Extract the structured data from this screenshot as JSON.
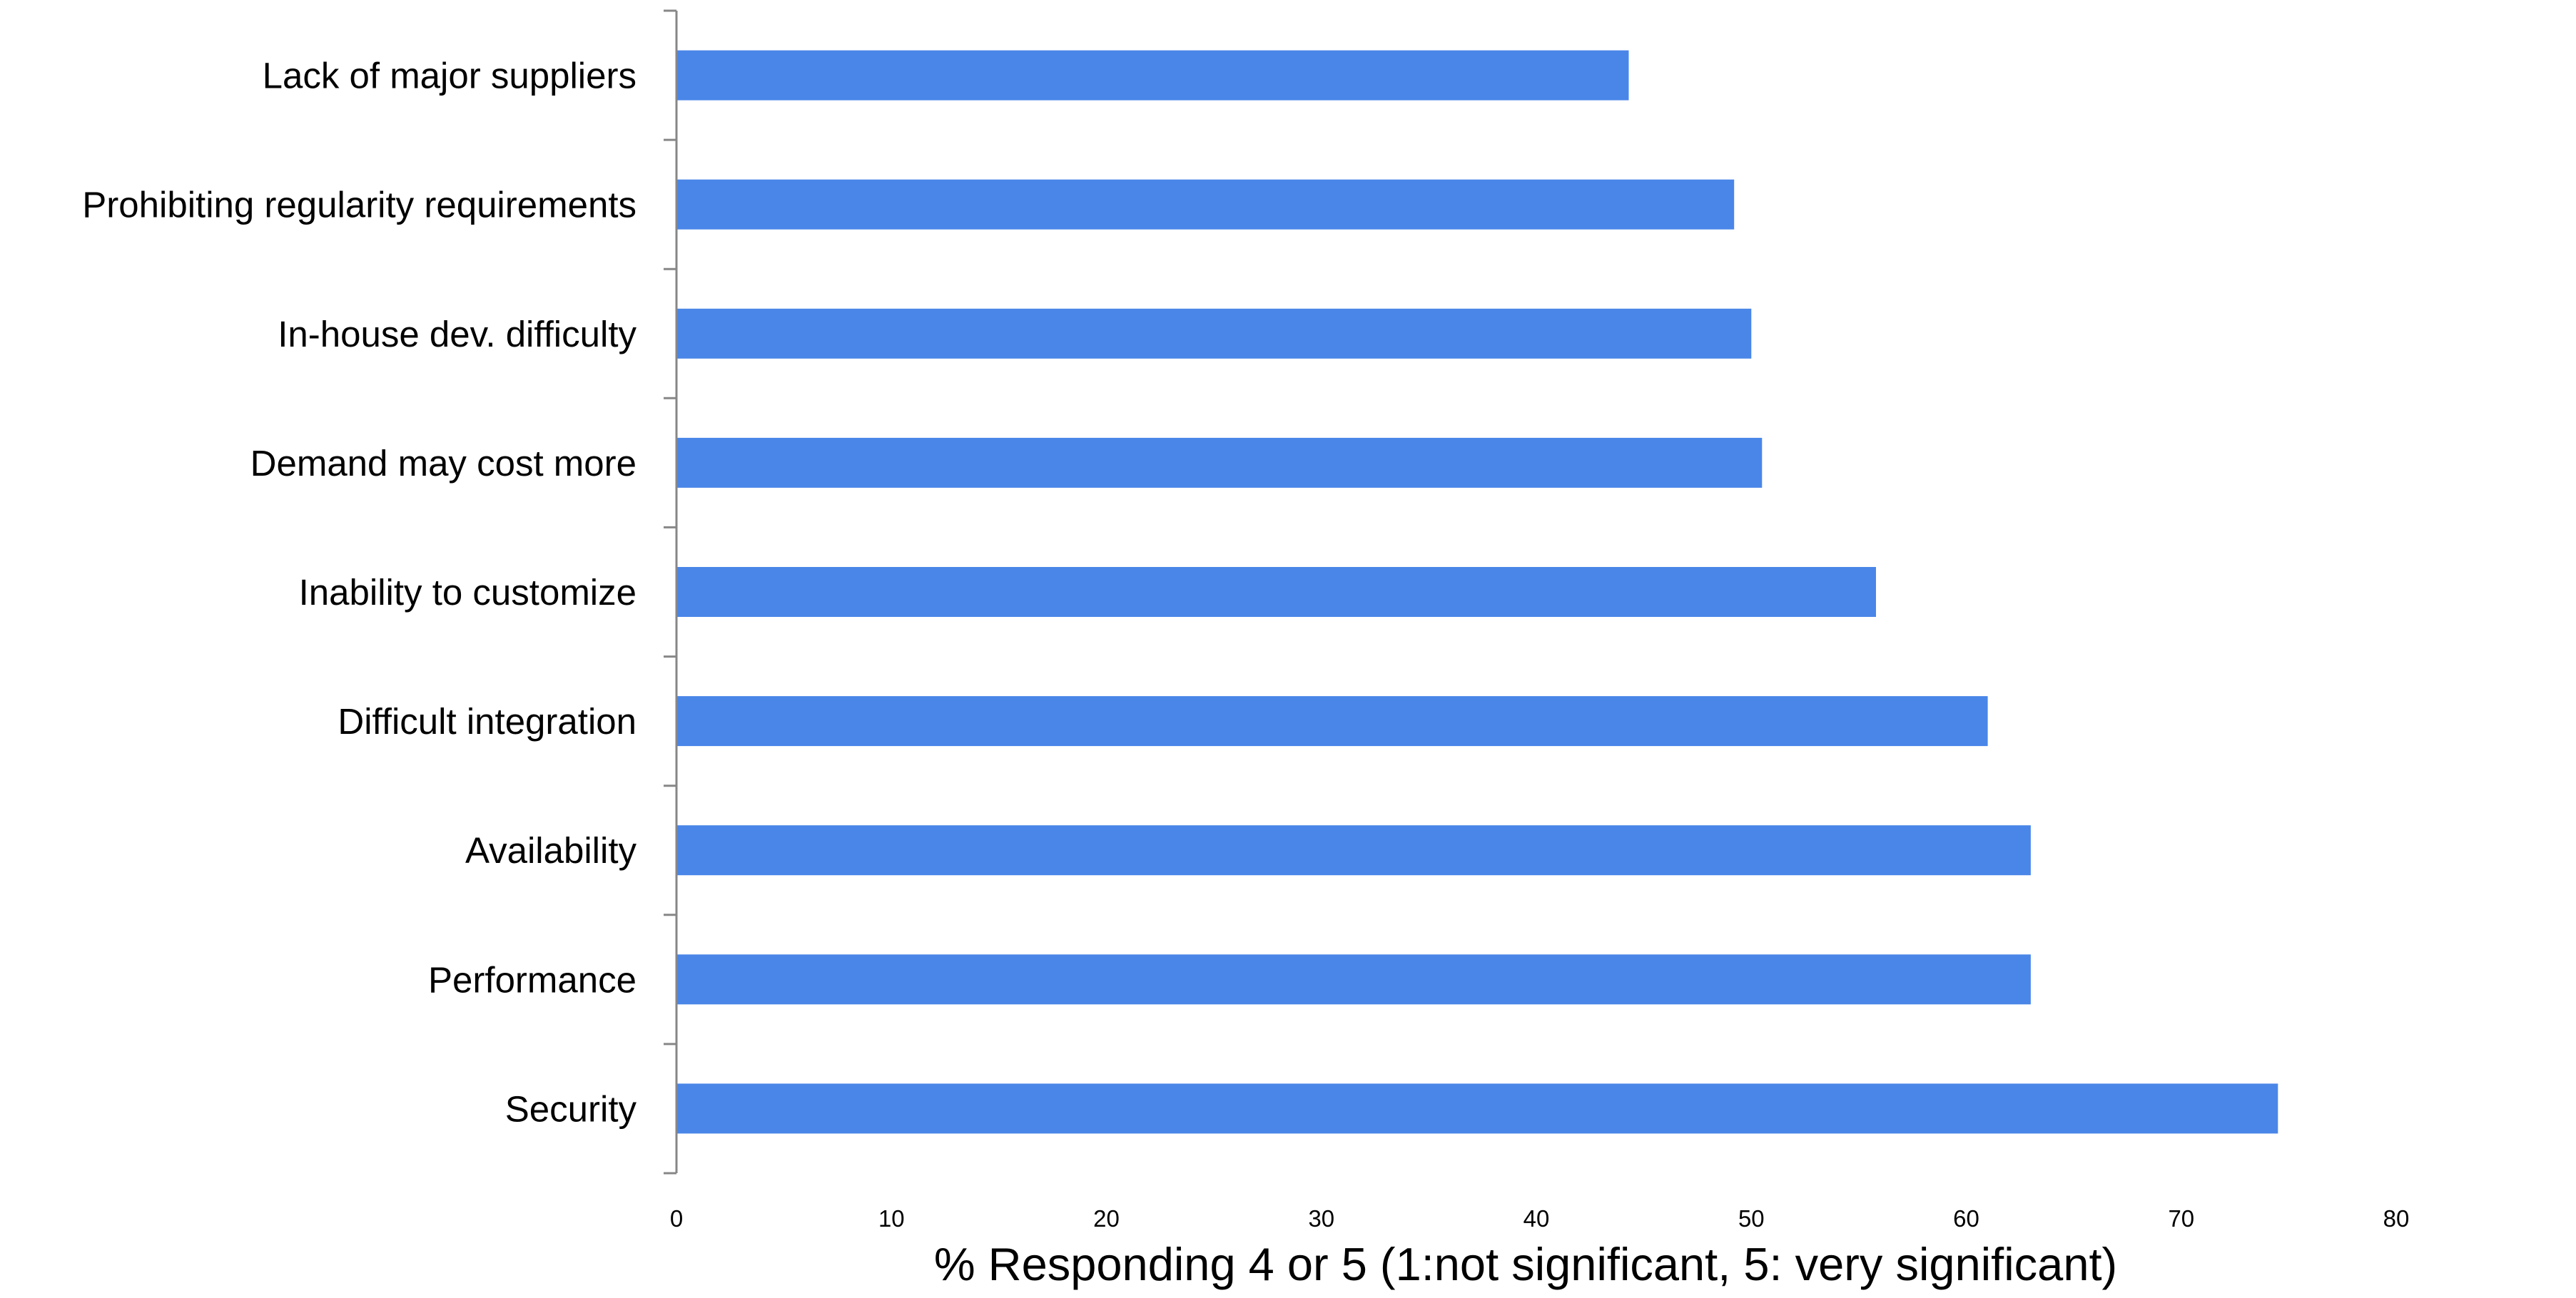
{
  "chart_data": {
    "type": "bar",
    "orientation": "horizontal",
    "categories": [
      "Security",
      "Performance",
      "Availability",
      "Difficult integration",
      "Inability to customize",
      "Demand may cost more",
      "In-house dev. difficulty",
      "Prohibiting regularity requirements",
      "Lack of major suppliers"
    ],
    "values": [
      74.5,
      63,
      63,
      61,
      55.8,
      50.5,
      50,
      49.2,
      44.3
    ],
    "xlim": [
      0,
      80
    ],
    "xticks": [
      "0",
      "10",
      "20",
      "30",
      "40",
      "50",
      "60",
      "70",
      "80"
    ],
    "xlabel": "% Responding 4 or  5   (1:not significant, 5: very significant)",
    "ylabel": "",
    "title": "",
    "grid": false,
    "legend": "none",
    "bar_color": "#4A86E8",
    "axis_color": "#878787"
  }
}
